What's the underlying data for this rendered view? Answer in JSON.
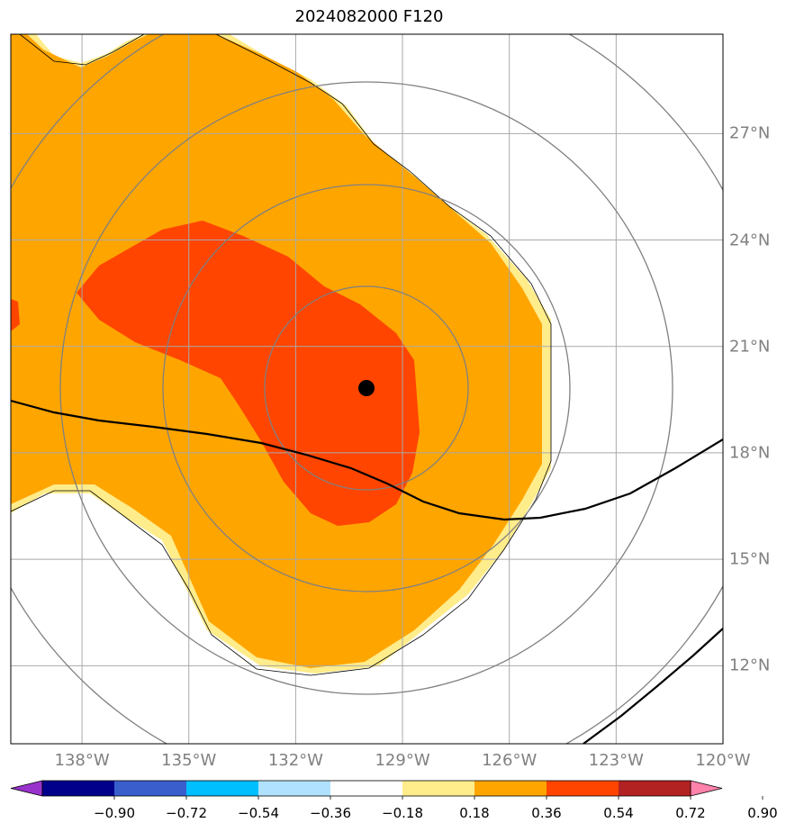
{
  "title": "2024082000 F120",
  "map": {
    "lon_range": [
      -140,
      -120
    ],
    "lat_range": [
      9.8,
      29.8
    ],
    "lon_ticks": [
      {
        "value": -138,
        "label": "138°W"
      },
      {
        "value": -135,
        "label": "135°W"
      },
      {
        "value": -132,
        "label": "132°W"
      },
      {
        "value": -129,
        "label": "129°W"
      },
      {
        "value": -126,
        "label": "126°W"
      },
      {
        "value": -123,
        "label": "123°W"
      },
      {
        "value": -120,
        "label": "120°W"
      }
    ],
    "lat_ticks": [
      {
        "value": 27,
        "label": "27°N"
      },
      {
        "value": 24,
        "label": "24°N"
      },
      {
        "value": 21,
        "label": "21°N"
      },
      {
        "value": 18,
        "label": "18°N"
      },
      {
        "value": 15,
        "label": "15°N"
      },
      {
        "value": 12,
        "label": "12°N"
      }
    ],
    "storm_center": {
      "lon": -130.0,
      "lat": 19.6
    },
    "range_rings": "concentric circles around storm center",
    "grid": true,
    "colors": {
      "field_036_054": "#FFA500",
      "field_054_072": "#FF4500",
      "field_018_036": "#FFEC8B",
      "grid": "#A9A9A9",
      "rings": "#808080",
      "tracks": "#000000"
    }
  },
  "chart_data": {
    "type": "heatmap",
    "title": "2024082000 F120",
    "colorbar": {
      "bounds": [
        -0.9,
        -0.72,
        -0.54,
        -0.36,
        -0.18,
        0.18,
        0.36,
        0.54,
        0.72,
        0.9
      ],
      "labels": [
        "−0.90",
        "−0.72",
        "−0.54",
        "−0.36",
        "−0.18",
        "0.18",
        "0.36",
        "0.54",
        "0.72",
        "0.90"
      ],
      "colors": [
        "#9932CC",
        "#00008B",
        "#3A5FCD",
        "#00BFFF",
        "#B0E2FF",
        "#FFFFFF",
        "#FFEC8B",
        "#FFA500",
        "#FF4500",
        "#B22222",
        "#FF82AB"
      ],
      "extend": "both"
    },
    "visible_levels": [
      "0.18-0.36",
      "0.36-0.54",
      "0.54-0.72"
    ]
  }
}
